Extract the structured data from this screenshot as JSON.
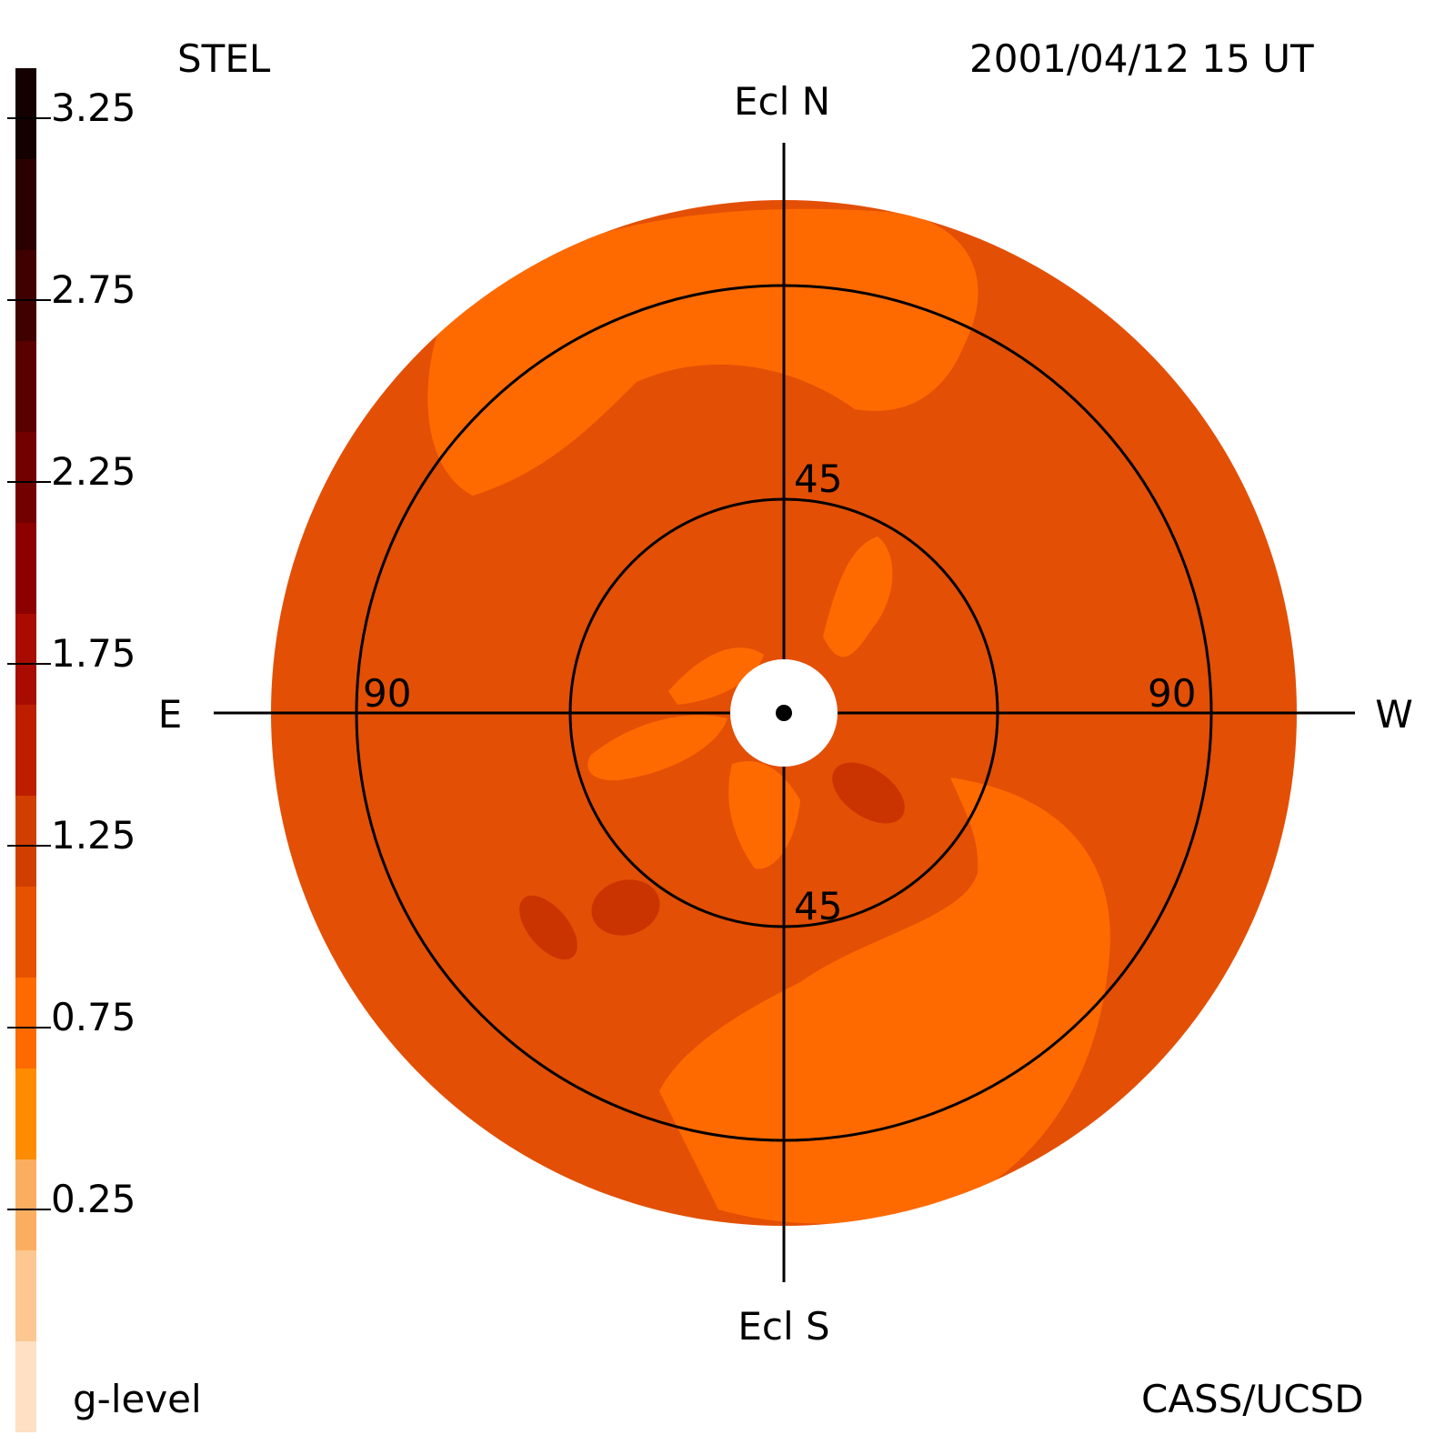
{
  "header": {
    "instrument": "STEL",
    "datetime": "2001/04/12 15 UT",
    "credit": "CASS/UCSD"
  },
  "colorbar": {
    "label": "g-level",
    "tick_labels": [
      "3.25",
      "2.75",
      "2.25",
      "1.75",
      "1.25",
      "0.75",
      "0.25"
    ],
    "colors": [
      "#ffe0c4",
      "#fcc791",
      "#fcae60",
      "#ff8c00",
      "#ff6a00",
      "#e65200",
      "#d13f00",
      "#bd1e00",
      "#a80c00",
      "#8c0000",
      "#730000",
      "#590000",
      "#400000",
      "#2b0000",
      "#140000"
    ]
  },
  "compass": {
    "north": "Ecl N",
    "south": "Ecl S",
    "east": "E",
    "west": "W"
  },
  "rings": {
    "inner_north": "45",
    "inner_south": "45",
    "outer_east": "90",
    "outer_west": "90"
  },
  "map_colors": {
    "background": "#e34f05",
    "light": "#ff6a00",
    "dark": "#c93400",
    "sun": "#ffffff",
    "line": "#000000"
  }
}
